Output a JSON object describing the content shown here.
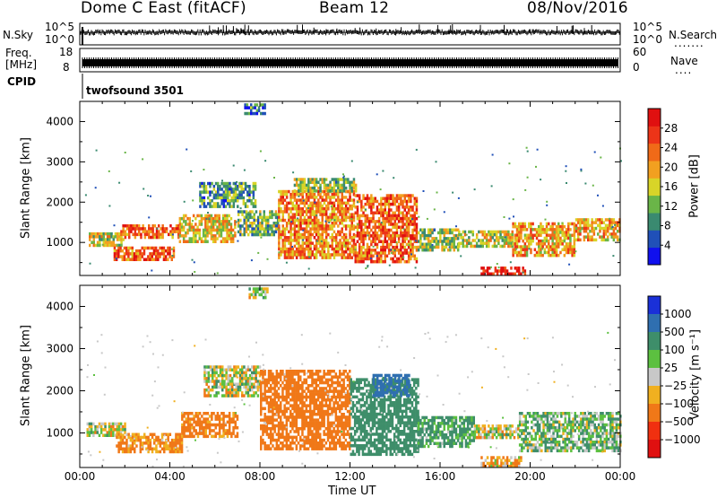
{
  "header": {
    "title": "Dome C East (fitACF)",
    "beam": "Beam 12",
    "date": "08/Nov/2016"
  },
  "top_panels": {
    "nsky_label": "N.Sky",
    "nsky_ticks": [
      "10^5",
      "10^0"
    ],
    "nsearch_label": "N.Search",
    "nsearch_ticks": [
      "10^5",
      "10^0"
    ],
    "nsearch_dots": ".......",
    "freq_label_1": "Freq.",
    "freq_label_2": "[MHz]",
    "freq_ticks": [
      "18",
      "8"
    ],
    "nave_label": "Nave",
    "nave_ticks": [
      "60",
      "0"
    ],
    "nave_dots": "....",
    "cpid_label": "CPID",
    "cpid_value": "twofsound 3501"
  },
  "chart_data": [
    {
      "type": "heatmap",
      "title": "",
      "xlabel": "Time UT",
      "ylabel": "Slant Range [km]",
      "x_ticks": [
        "00:00",
        "04:00",
        "08:00",
        "12:00",
        "16:00",
        "20:00",
        "00:00"
      ],
      "x_tick_hours": [
        0,
        4,
        8,
        12,
        16,
        20,
        24
      ],
      "xlim_hours": [
        0,
        24
      ],
      "y_ticks": [
        "1000",
        "2000",
        "3000",
        "4000"
      ],
      "y_tick_values": [
        1000,
        2000,
        3000,
        4000
      ],
      "ylim": [
        180,
        4500
      ],
      "colorbar": {
        "label": "Power [dB]",
        "ticks": [
          "4",
          "8",
          "12",
          "16",
          "20",
          "24",
          "28"
        ],
        "tick_values": [
          4,
          8,
          12,
          16,
          20,
          24,
          28
        ],
        "range": [
          0,
          32
        ],
        "colors": [
          "#1010ee",
          "#2050b8",
          "#3a8a70",
          "#6ab548",
          "#d8d428",
          "#f2a020",
          "#f06a18",
          "#ec3418",
          "#e01010"
        ]
      },
      "echo_regions": [
        {
          "t0": 0.4,
          "t1": 1.9,
          "r0": 950,
          "r1": 1250,
          "level": 16
        },
        {
          "t0": 1.8,
          "t1": 4.4,
          "r0": 1150,
          "r1": 1450,
          "level": 24
        },
        {
          "t0": 1.5,
          "t1": 4.2,
          "r0": 600,
          "r1": 900,
          "level": 24
        },
        {
          "t0": 4.4,
          "t1": 6.9,
          "r0": 1050,
          "r1": 1700,
          "level": 18
        },
        {
          "t0": 5.3,
          "t1": 7.8,
          "r0": 1900,
          "r1": 2500,
          "level": 10
        },
        {
          "t0": 7.0,
          "t1": 8.8,
          "r0": 1200,
          "r1": 1800,
          "level": 12
        },
        {
          "t0": 8.8,
          "t1": 12.2,
          "r0": 600,
          "r1": 2300,
          "level": 22
        },
        {
          "t0": 9.5,
          "t1": 12.3,
          "r0": 2300,
          "r1": 2600,
          "level": 14
        },
        {
          "t0": 12.2,
          "t1": 15.0,
          "r0": 500,
          "r1": 2200,
          "level": 24
        },
        {
          "t0": 15.0,
          "t1": 16.8,
          "r0": 850,
          "r1": 1350,
          "level": 14
        },
        {
          "t0": 16.8,
          "t1": 19.2,
          "r0": 900,
          "r1": 1300,
          "level": 16
        },
        {
          "t0": 19.2,
          "t1": 22.0,
          "r0": 700,
          "r1": 1500,
          "level": 20
        },
        {
          "t0": 22.0,
          "t1": 24.0,
          "r0": 1050,
          "r1": 1600,
          "level": 20
        },
        {
          "t0": 17.8,
          "t1": 19.8,
          "r0": 200,
          "r1": 400,
          "level": 30
        },
        {
          "t0": 7.3,
          "t1": 8.2,
          "r0": 4200,
          "r1": 4450,
          "level": 8
        }
      ]
    },
    {
      "type": "heatmap",
      "title": "",
      "xlabel": "Time UT",
      "ylabel": "Slant Range [km]",
      "x_ticks": [
        "00:00",
        "04:00",
        "08:00",
        "12:00",
        "16:00",
        "20:00",
        "00:00"
      ],
      "x_tick_hours": [
        0,
        4,
        8,
        12,
        16,
        20,
        24
      ],
      "xlim_hours": [
        0,
        24
      ],
      "y_ticks": [
        "1000",
        "2000",
        "3000",
        "4000"
      ],
      "y_tick_values": [
        1000,
        2000,
        3000,
        4000
      ],
      "ylim": [
        180,
        4500
      ],
      "colorbar": {
        "label": "Velocity [m s⁻¹]",
        "ticks": [
          "1000",
          "500",
          "100",
          "25",
          "−25",
          "−100",
          "−500",
          "−1000"
        ],
        "tick_values": [
          1000,
          500,
          100,
          25,
          -25,
          -100,
          -500,
          -1000
        ],
        "colors": [
          "#1a30d8",
          "#2f6fb0",
          "#3e8e6a",
          "#5cc040",
          "#c8c8c8",
          "#f0b020",
          "#f07818",
          "#f03010",
          "#e01010"
        ]
      },
      "echo_regions": [
        {
          "t0": 0.3,
          "t1": 2.0,
          "r0": 950,
          "r1": 1250,
          "velocity": 0
        },
        {
          "t0": 1.6,
          "t1": 4.5,
          "r0": 550,
          "r1": 1000,
          "velocity": -150
        },
        {
          "t0": 4.5,
          "t1": 7.0,
          "r0": 900,
          "r1": 1500,
          "velocity": -200
        },
        {
          "t0": 5.5,
          "t1": 8.0,
          "r0": 1900,
          "r1": 2600,
          "velocity": 0
        },
        {
          "t0": 8.0,
          "t1": 12.0,
          "r0": 600,
          "r1": 2500,
          "velocity": -300
        },
        {
          "t0": 12.0,
          "t1": 15.0,
          "r0": 500,
          "r1": 2300,
          "velocity": 300
        },
        {
          "t0": 15.0,
          "t1": 17.5,
          "r0": 700,
          "r1": 1400,
          "velocity": 150
        },
        {
          "t0": 17.5,
          "t1": 19.5,
          "r0": 900,
          "r1": 1200,
          "velocity": 0
        },
        {
          "t0": 19.5,
          "t1": 24.0,
          "r0": 600,
          "r1": 1500,
          "velocity": 80
        },
        {
          "t0": 13.0,
          "t1": 14.6,
          "r0": 1900,
          "r1": 2400,
          "velocity": 600
        },
        {
          "t0": 17.8,
          "t1": 19.6,
          "r0": 200,
          "r1": 450,
          "velocity": -80
        },
        {
          "t0": 7.5,
          "t1": 8.3,
          "r0": 4200,
          "r1": 4450,
          "velocity": 0
        }
      ]
    }
  ]
}
